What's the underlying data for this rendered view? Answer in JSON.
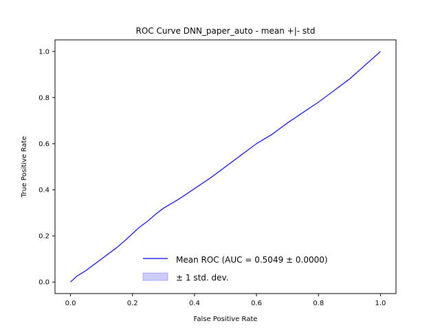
{
  "chart_data": {
    "type": "line",
    "title": "ROC Curve DNN_paper_auto - mean +|- std",
    "xlabel": "False Positive Rate",
    "ylabel": "True Positive Rate",
    "xlim": [
      -0.05,
      1.05
    ],
    "ylim": [
      -0.05,
      1.05
    ],
    "xticks": [
      0.0,
      0.2,
      0.4,
      0.6,
      0.8,
      1.0
    ],
    "yticks": [
      0.0,
      0.2,
      0.4,
      0.6,
      0.8,
      1.0
    ],
    "xtick_labels": [
      "0.0",
      "0.2",
      "0.4",
      "0.6",
      "0.8",
      "1.0"
    ],
    "ytick_labels": [
      "0.0",
      "0.2",
      "0.4",
      "0.6",
      "0.8",
      "1.0"
    ],
    "grid": false,
    "legend_position": "lower-right",
    "series": [
      {
        "name": "Mean ROC (AUC = 0.5049 ± 0.0000)",
        "color": "#0000ff",
        "x": [
          0.0,
          0.02,
          0.05,
          0.08,
          0.1,
          0.12,
          0.15,
          0.18,
          0.2,
          0.22,
          0.25,
          0.28,
          0.3,
          0.35,
          0.4,
          0.45,
          0.5,
          0.55,
          0.6,
          0.65,
          0.7,
          0.75,
          0.8,
          0.85,
          0.9,
          0.95,
          1.0
        ],
        "y": [
          0.0,
          0.025,
          0.05,
          0.08,
          0.1,
          0.12,
          0.15,
          0.185,
          0.21,
          0.235,
          0.265,
          0.3,
          0.32,
          0.36,
          0.405,
          0.45,
          0.5,
          0.55,
          0.6,
          0.64,
          0.69,
          0.735,
          0.78,
          0.83,
          0.88,
          0.94,
          1.0
        ]
      }
    ],
    "band": {
      "name": "± 1 std. dev.",
      "color": "#0000ff",
      "opacity": 0.2,
      "half_width": 0.0
    }
  }
}
